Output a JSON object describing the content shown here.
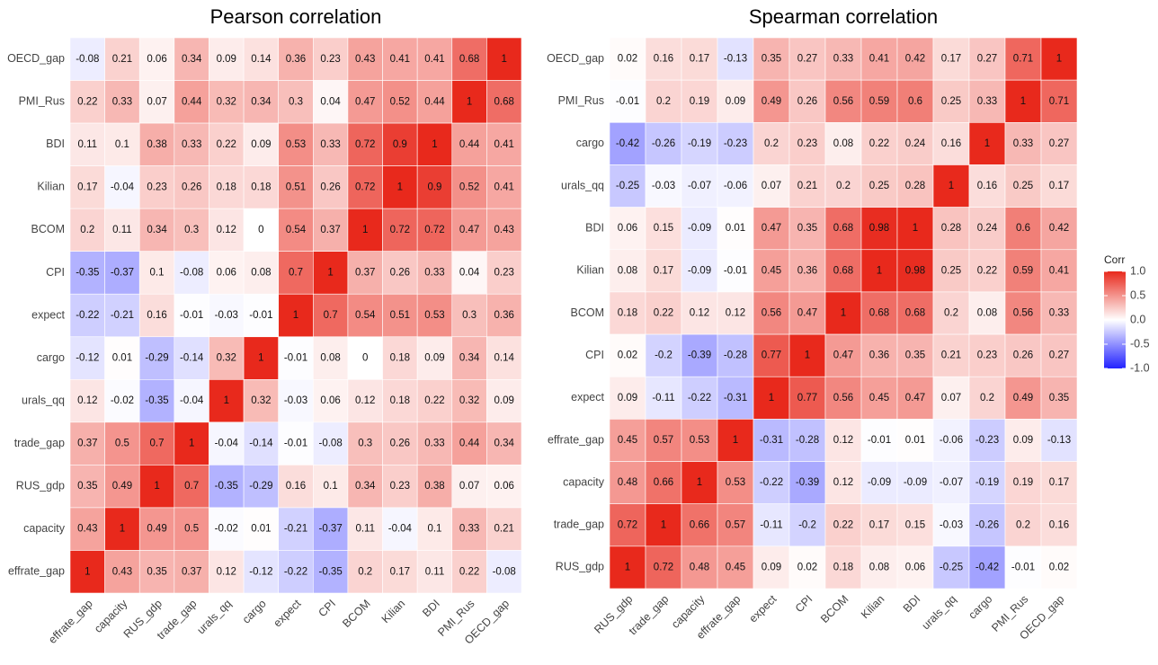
{
  "chart_data": [
    {
      "type": "heatmap",
      "title": "Pearson correlation",
      "x": [
        "effrate_gap",
        "capacity",
        "RUS_gdp",
        "trade_gap",
        "urals_qq",
        "cargo",
        "expect",
        "CPI",
        "BCOM",
        "Kilian",
        "BDI",
        "PMI_Rus",
        "OECD_gap"
      ],
      "y": [
        "OECD_gap",
        "PMI_Rus",
        "BDI",
        "Kilian",
        "BCOM",
        "CPI",
        "expect",
        "cargo",
        "urals_qq",
        "trade_gap",
        "RUS_gdp",
        "capacity",
        "effrate_gap"
      ],
      "values": [
        [
          -0.08,
          0.21,
          0.06,
          0.34,
          0.09,
          0.14,
          0.36,
          0.23,
          0.43,
          0.41,
          0.41,
          0.68,
          1
        ],
        [
          0.22,
          0.33,
          0.07,
          0.44,
          0.32,
          0.34,
          0.3,
          0.04,
          0.47,
          0.52,
          0.44,
          1,
          0.68
        ],
        [
          0.11,
          0.1,
          0.38,
          0.33,
          0.22,
          0.09,
          0.53,
          0.33,
          0.72,
          0.9,
          1,
          0.44,
          0.41
        ],
        [
          0.17,
          -0.04,
          0.23,
          0.26,
          0.18,
          0.18,
          0.51,
          0.26,
          0.72,
          1,
          0.9,
          0.52,
          0.41
        ],
        [
          0.2,
          0.11,
          0.34,
          0.3,
          0.12,
          0,
          0.54,
          0.37,
          1,
          0.72,
          0.72,
          0.47,
          0.43
        ],
        [
          -0.35,
          -0.37,
          0.1,
          -0.08,
          0.06,
          0.08,
          0.7,
          1,
          0.37,
          0.26,
          0.33,
          0.04,
          0.23
        ],
        [
          -0.22,
          -0.21,
          0.16,
          -0.01,
          -0.03,
          -0.01,
          1,
          0.7,
          0.54,
          0.51,
          0.53,
          0.3,
          0.36
        ],
        [
          -0.12,
          0.01,
          -0.29,
          -0.14,
          0.32,
          1,
          -0.01,
          0.08,
          0,
          0.18,
          0.09,
          0.34,
          0.14
        ],
        [
          0.12,
          -0.02,
          -0.35,
          -0.04,
          1,
          0.32,
          -0.03,
          0.06,
          0.12,
          0.18,
          0.22,
          0.32,
          0.09
        ],
        [
          0.37,
          0.5,
          0.7,
          1,
          -0.04,
          -0.14,
          -0.01,
          -0.08,
          0.3,
          0.26,
          0.33,
          0.44,
          0.34
        ],
        [
          0.35,
          0.49,
          1,
          0.7,
          -0.35,
          -0.29,
          0.16,
          0.1,
          0.34,
          0.23,
          0.38,
          0.07,
          0.06
        ],
        [
          0.43,
          1,
          0.49,
          0.5,
          -0.02,
          0.01,
          -0.21,
          -0.37,
          0.11,
          -0.04,
          0.1,
          0.33,
          0.21
        ],
        [
          1,
          0.43,
          0.35,
          0.37,
          0.12,
          -0.12,
          -0.22,
          -0.35,
          0.2,
          0.17,
          0.11,
          0.22,
          -0.08
        ]
      ],
      "colors": [
        "#2222ff",
        "#ffffff",
        "#e8291c"
      ]
    },
    {
      "type": "heatmap",
      "title": "Spearman correlation",
      "x": [
        "RUS_gdp",
        "trade_gap",
        "capacity",
        "effrate_gap",
        "expect",
        "CPI",
        "BCOM",
        "Kilian",
        "BDI",
        "urals_qq",
        "cargo",
        "PMI_Rus",
        "OECD_gap"
      ],
      "y": [
        "OECD_gap",
        "PMI_Rus",
        "cargo",
        "urals_qq",
        "BDI",
        "Kilian",
        "BCOM",
        "CPI",
        "expect",
        "effrate_gap",
        "capacity",
        "trade_gap",
        "RUS_gdp"
      ],
      "values": [
        [
          0.02,
          0.16,
          0.17,
          -0.13,
          0.35,
          0.27,
          0.33,
          0.41,
          0.42,
          0.17,
          0.27,
          0.71,
          1
        ],
        [
          -0.01,
          0.2,
          0.19,
          0.09,
          0.49,
          0.26,
          0.56,
          0.59,
          0.6,
          0.25,
          0.33,
          1,
          0.71
        ],
        [
          -0.42,
          -0.26,
          -0.19,
          -0.23,
          0.2,
          0.23,
          0.08,
          0.22,
          0.24,
          0.16,
          1,
          0.33,
          0.27
        ],
        [
          -0.25,
          -0.03,
          -0.07,
          -0.06,
          0.07,
          0.21,
          0.2,
          0.25,
          0.28,
          1,
          0.16,
          0.25,
          0.17
        ],
        [
          0.06,
          0.15,
          -0.09,
          0.01,
          0.47,
          0.35,
          0.68,
          0.98,
          1,
          0.28,
          0.24,
          0.6,
          0.42
        ],
        [
          0.08,
          0.17,
          -0.09,
          -0.01,
          0.45,
          0.36,
          0.68,
          1,
          0.98,
          0.25,
          0.22,
          0.59,
          0.41
        ],
        [
          0.18,
          0.22,
          0.12,
          0.12,
          0.56,
          0.47,
          1,
          0.68,
          0.68,
          0.2,
          0.08,
          0.56,
          0.33
        ],
        [
          0.02,
          -0.2,
          -0.39,
          -0.28,
          0.77,
          1,
          0.47,
          0.36,
          0.35,
          0.21,
          0.23,
          0.26,
          0.27
        ],
        [
          0.09,
          -0.11,
          -0.22,
          -0.31,
          1,
          0.77,
          0.56,
          0.45,
          0.47,
          0.07,
          0.2,
          0.49,
          0.35
        ],
        [
          0.45,
          0.57,
          0.53,
          1,
          -0.31,
          -0.28,
          0.12,
          -0.01,
          0.01,
          -0.06,
          -0.23,
          0.09,
          -0.13
        ],
        [
          0.48,
          0.66,
          1,
          0.53,
          -0.22,
          -0.39,
          0.12,
          -0.09,
          -0.09,
          -0.07,
          -0.19,
          0.19,
          0.17
        ],
        [
          0.72,
          1,
          0.66,
          0.57,
          -0.11,
          -0.2,
          0.22,
          0.17,
          0.15,
          -0.03,
          -0.26,
          0.2,
          0.16
        ],
        [
          1,
          0.72,
          0.48,
          0.45,
          0.09,
          0.02,
          0.18,
          0.08,
          0.06,
          -0.25,
          -0.42,
          -0.01,
          0.02
        ]
      ],
      "colors": [
        "#2222ff",
        "#ffffff",
        "#e8291c"
      ],
      "colorbar": {
        "title": "Corr",
        "lim": [
          -1,
          1
        ],
        "ticks": [
          {
            "value": 1,
            "label": "1.0"
          },
          0.5,
          {
            "value": 0,
            "label": "0.0"
          },
          -0.5,
          {
            "value": -1,
            "label": "-1.0"
          }
        ]
      }
    }
  ]
}
